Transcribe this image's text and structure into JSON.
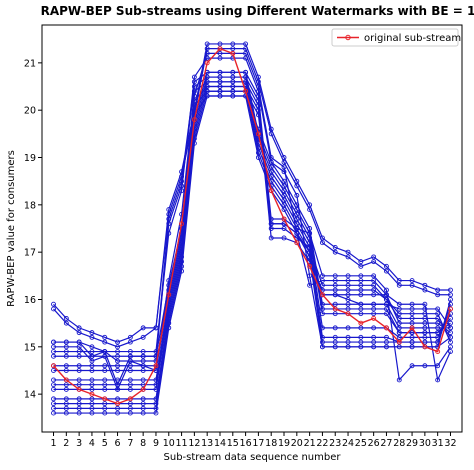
{
  "chart_data": {
    "type": "line",
    "title": "RAPW-BEP Sub-streams using Different Watermarks with BE = 1",
    "xlabel": "Sub-stream data sequence number",
    "ylabel": "RAPW-BEP value for consumers",
    "x": [
      1,
      2,
      3,
      4,
      5,
      6,
      7,
      8,
      9,
      10,
      11,
      12,
      13,
      14,
      15,
      16,
      17,
      18,
      19,
      20,
      21,
      22,
      23,
      24,
      25,
      26,
      27,
      28,
      29,
      30,
      31,
      32
    ],
    "xlim": [
      0.1,
      32.9
    ],
    "ylim": [
      13.2,
      21.8
    ],
    "yticks": [
      14,
      15,
      16,
      17,
      18,
      19,
      20,
      21
    ],
    "grid": false,
    "legend": {
      "position": "top-right",
      "entries": [
        "original sub-stream"
      ]
    },
    "colors": {
      "original": "#e8232a",
      "watermarked": "#1818cc"
    },
    "original": {
      "name": "original sub-stream",
      "values": [
        14.6,
        14.3,
        14.1,
        14.0,
        13.9,
        13.8,
        13.9,
        14.1,
        14.6,
        16.1,
        17.6,
        19.8,
        21.0,
        21.3,
        21.2,
        20.4,
        19.5,
        18.3,
        17.7,
        17.2,
        16.7,
        16.1,
        15.8,
        15.7,
        15.5,
        15.6,
        15.4,
        15.1,
        15.4,
        15.0,
        14.9,
        15.8
      ]
    },
    "watermarked": [
      [
        15.9,
        15.6,
        15.4,
        15.3,
        15.2,
        15.1,
        15.2,
        15.4,
        15.4,
        17.9,
        18.7,
        20.0,
        21.4,
        21.4,
        21.4,
        21.4,
        20.7,
        19.6,
        19.0,
        18.5,
        18.0,
        17.3,
        17.1,
        17.0,
        16.8,
        16.9,
        16.7,
        16.4,
        16.4,
        16.3,
        16.2,
        16.2
      ],
      [
        15.8,
        15.5,
        15.3,
        15.2,
        15.1,
        15.0,
        15.1,
        15.2,
        15.4,
        17.8,
        18.6,
        19.9,
        21.3,
        21.3,
        21.3,
        21.3,
        20.6,
        19.5,
        18.9,
        18.4,
        17.9,
        17.2,
        17.0,
        16.9,
        16.7,
        16.8,
        16.6,
        16.3,
        16.3,
        16.2,
        16.1,
        16.1
      ],
      [
        15.1,
        15.1,
        15.1,
        14.8,
        14.9,
        14.2,
        14.8,
        14.8,
        14.8,
        17.7,
        18.5,
        20.6,
        20.8,
        20.8,
        20.8,
        20.8,
        20.3,
        17.7,
        17.7,
        17.5,
        17.4,
        16.5,
        16.5,
        16.5,
        16.5,
        16.5,
        16.2,
        14.3,
        14.6,
        14.6,
        14.6,
        15.0
      ],
      [
        15.0,
        15.0,
        15.0,
        14.7,
        14.8,
        14.1,
        14.7,
        14.7,
        14.7,
        17.6,
        18.4,
        20.5,
        20.7,
        20.7,
        20.7,
        20.7,
        20.2,
        17.6,
        17.6,
        17.4,
        16.3,
        16.4,
        16.4,
        16.4,
        16.4,
        16.4,
        16.1,
        15.9,
        15.9,
        15.9,
        14.3,
        14.9
      ],
      [
        14.8,
        14.8,
        14.8,
        14.8,
        14.8,
        14.8,
        14.8,
        14.8,
        14.8,
        16.3,
        17.5,
        20.4,
        20.6,
        20.6,
        20.6,
        20.6,
        20.1,
        17.5,
        17.5,
        17.3,
        17.1,
        16.3,
        16.3,
        16.3,
        16.3,
        16.3,
        16.0,
        15.7,
        15.7,
        15.7,
        15.7,
        15.1
      ],
      [
        14.6,
        14.6,
        14.6,
        14.6,
        14.6,
        14.6,
        14.6,
        14.6,
        14.6,
        16.2,
        17.4,
        20.2,
        20.5,
        20.5,
        20.5,
        20.5,
        20.0,
        17.3,
        17.3,
        17.2,
        16.8,
        16.2,
        16.2,
        16.2,
        16.2,
        16.2,
        16.0,
        15.6,
        15.6,
        15.6,
        15.6,
        15.2
      ],
      [
        14.5,
        14.5,
        14.5,
        14.5,
        14.5,
        14.5,
        14.5,
        14.5,
        14.5,
        16.1,
        17.3,
        20.1,
        20.4,
        20.4,
        20.4,
        20.4,
        19.9,
        17.6,
        17.6,
        17.4,
        17.0,
        16.1,
        16.1,
        16.1,
        16.1,
        16.1,
        16.1,
        15.5,
        15.5,
        15.5,
        15.5,
        15.3
      ],
      [
        14.3,
        14.3,
        14.3,
        14.3,
        14.3,
        14.3,
        14.3,
        14.3,
        14.3,
        16.0,
        17.2,
        19.9,
        20.3,
        20.3,
        20.3,
        20.3,
        19.6,
        18.9,
        18.5,
        18.0,
        17.5,
        15.9,
        15.9,
        15.9,
        15.9,
        15.9,
        15.9,
        15.4,
        15.4,
        15.4,
        15.4,
        15.4
      ],
      [
        14.2,
        14.2,
        14.2,
        14.2,
        14.2,
        14.2,
        14.2,
        14.2,
        14.2,
        15.9,
        17.1,
        19.8,
        20.8,
        20.8,
        20.8,
        20.8,
        19.5,
        18.8,
        18.4,
        17.9,
        17.4,
        15.8,
        15.8,
        15.8,
        15.8,
        15.8,
        15.8,
        15.3,
        15.3,
        15.3,
        15.3,
        15.5
      ],
      [
        14.1,
        14.1,
        14.1,
        14.1,
        14.1,
        14.1,
        14.1,
        14.1,
        14.1,
        15.8,
        17.0,
        19.7,
        20.7,
        20.7,
        20.7,
        20.7,
        19.4,
        18.7,
        18.3,
        17.8,
        17.3,
        15.7,
        15.7,
        15.7,
        15.7,
        15.7,
        15.7,
        15.3,
        15.3,
        15.3,
        15.3,
        15.6
      ],
      [
        13.9,
        13.9,
        13.9,
        13.9,
        13.9,
        13.9,
        13.9,
        13.9,
        13.9,
        15.7,
        16.9,
        19.6,
        20.6,
        20.6,
        20.6,
        20.6,
        19.3,
        18.6,
        18.2,
        17.7,
        17.2,
        15.4,
        15.4,
        15.4,
        15.4,
        15.4,
        15.4,
        15.2,
        15.2,
        15.2,
        15.2,
        15.7
      ],
      [
        13.8,
        13.8,
        13.8,
        13.8,
        13.8,
        13.8,
        13.8,
        13.8,
        13.8,
        15.6,
        16.8,
        19.5,
        20.5,
        20.5,
        20.5,
        20.5,
        19.2,
        18.5,
        18.1,
        17.6,
        17.1,
        15.2,
        15.2,
        15.2,
        15.2,
        15.2,
        15.2,
        15.1,
        15.1,
        15.1,
        15.1,
        15.8
      ],
      [
        13.7,
        13.7,
        13.7,
        13.7,
        13.7,
        13.7,
        13.7,
        13.7,
        13.7,
        15.5,
        16.7,
        19.4,
        20.4,
        20.4,
        20.4,
        20.4,
        19.1,
        18.4,
        18.0,
        17.5,
        17.0,
        15.1,
        15.1,
        15.1,
        15.1,
        15.1,
        15.1,
        15.1,
        15.1,
        15.1,
        15.1,
        15.9
      ],
      [
        13.6,
        13.6,
        13.6,
        13.6,
        13.6,
        13.6,
        13.6,
        13.6,
        13.6,
        15.4,
        16.6,
        19.3,
        20.3,
        20.3,
        20.3,
        20.3,
        19.0,
        18.3,
        17.9,
        17.4,
        16.9,
        15.0,
        15.0,
        15.0,
        15.0,
        15.0,
        15.0,
        15.0,
        15.0,
        15.0,
        15.0,
        16.0
      ],
      [
        15.1,
        15.1,
        15.1,
        15.0,
        14.9,
        14.7,
        14.7,
        14.6,
        14.5,
        16.4,
        17.8,
        20.3,
        21.2,
        21.2,
        21.2,
        21.2,
        20.5,
        19.0,
        18.8,
        17.4,
        16.9,
        16.1,
        16.1,
        16.0,
        15.9,
        15.9,
        15.9,
        15.8,
        15.8,
        15.8,
        15.8,
        15.4
      ],
      [
        14.9,
        14.9,
        14.9,
        14.9,
        14.9,
        14.9,
        14.9,
        14.9,
        14.9,
        17.4,
        18.3,
        20.7,
        21.1,
        21.1,
        21.1,
        21.1,
        20.4,
        18.9,
        18.7,
        18.2,
        16.5,
        15.0,
        15.0,
        15.0,
        15.0,
        15.0,
        15.0,
        15.0,
        15.0,
        15.0,
        15.0,
        15.2
      ]
    ]
  }
}
